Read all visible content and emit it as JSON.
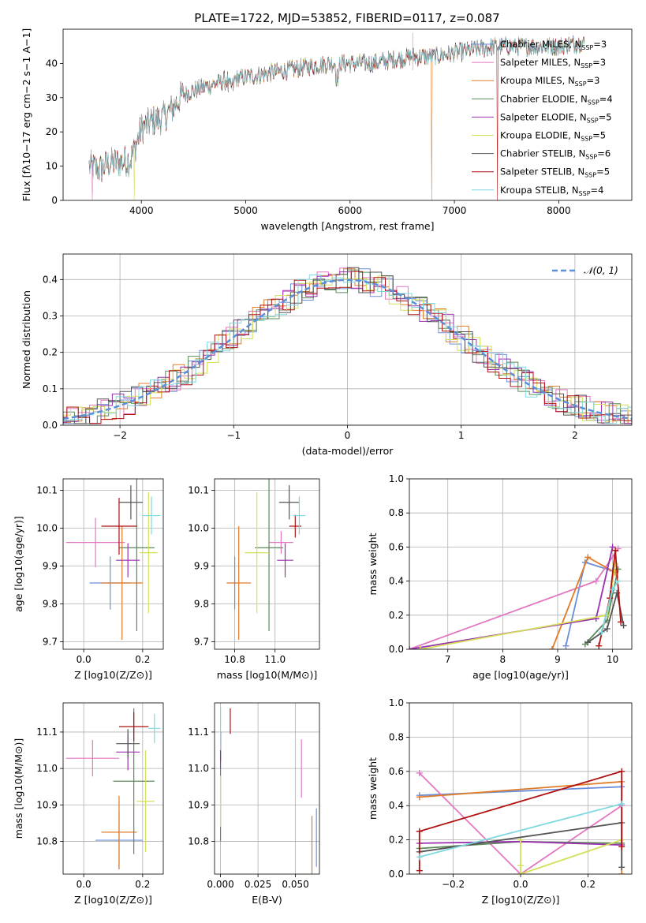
{
  "title": "PLATE=1722, MJD=53852, FIBERID=0117, z=0.087",
  "colors": {
    "Chabrier MILES": "#6a8fd8",
    "Salpeter MILES": "#e377c2",
    "Kroupa MILES": "#e07b28",
    "Chabrier ELODIE": "#5c8a5a",
    "Salpeter ELODIE": "#9b30b0",
    "Kroupa ELODIE": "#d4e05a",
    "Chabrier STELIB": "#555555",
    "Salpeter STELIB": "#b01010",
    "Kroupa STELIB": "#7fd8e0"
  },
  "labels": {
    "spec_ylabel": "Flux [f$_\\lambda$10$^{-17}$ erg cm$^{-2}$ s$^{-1}$ A$^{-1}$]",
    "spec_xlabel": "wavelength [Angstrom, rest frame]",
    "hist_ylabel": "Normed distribution",
    "hist_xlabel": "(data-model)/error",
    "hist_legend": "𝒩(0, 1)",
    "age_label": "age  [log10(age/yr)]",
    "Z_label": "Z [log10(Z/Z⊙)]",
    "mass_label": "mass [log10(M/M⊙)]",
    "ebv_label": "E(B-V)",
    "mw_label": "mass weight"
  },
  "chart_data": [
    {
      "type": "line",
      "name": "spectrum",
      "xlabel": "wavelength [Angstrom, rest frame]",
      "ylabel": "Flux [fλ10−17 erg cm−2 s−1 A−1]",
      "xlim": [
        3250,
        8700
      ],
      "ylim": [
        0,
        50
      ],
      "xticks": [
        4000,
        5000,
        6000,
        7000,
        8000
      ],
      "yticks": [
        0,
        10,
        20,
        30,
        40
      ],
      "legend_position": "top-right",
      "legend": [
        {
          "name": "Chabrier MILES",
          "nssp": "3"
        },
        {
          "name": "Salpeter MILES",
          "nssp": "3"
        },
        {
          "name": "Kroupa MILES",
          "nssp": "3"
        },
        {
          "name": "Chabrier ELODIE",
          "nssp": "4"
        },
        {
          "name": "Salpeter ELODIE",
          "nssp": "5"
        },
        {
          "name": "Kroupa ELODIE",
          "nssp": "5"
        },
        {
          "name": "Chabrier STELIB",
          "nssp": "6"
        },
        {
          "name": "Salpeter STELIB",
          "nssp": "5"
        },
        {
          "name": "Kroupa STELIB",
          "nssp": "4"
        }
      ],
      "continuum": [
        [
          3500,
          10
        ],
        [
          3600,
          9
        ],
        [
          3700,
          11
        ],
        [
          3800,
          11
        ],
        [
          3900,
          12
        ],
        [
          4000,
          21
        ],
        [
          4100,
          23
        ],
        [
          4200,
          24
        ],
        [
          4300,
          27
        ],
        [
          4400,
          31
        ],
        [
          4600,
          33
        ],
        [
          4800,
          35
        ],
        [
          5000,
          36
        ],
        [
          5200,
          37
        ],
        [
          5400,
          38
        ],
        [
          5600,
          39
        ],
        [
          5800,
          40
        ],
        [
          6000,
          40
        ],
        [
          6200,
          40
        ],
        [
          6400,
          41
        ],
        [
          6600,
          42
        ],
        [
          6800,
          42
        ],
        [
          7000,
          43
        ],
        [
          7200,
          44
        ],
        [
          7400,
          45
        ],
        [
          7600,
          45
        ],
        [
          7800,
          45
        ],
        [
          8000,
          45
        ],
        [
          8200,
          46
        ]
      ],
      "glitches": [
        {
          "x": 3530,
          "name": "Salpeter MILES"
        },
        {
          "x": 3930,
          "name": "Kroupa ELODIE"
        },
        {
          "x": 6780,
          "name": "Kroupa MILES"
        },
        {
          "x": 7410,
          "name": "Salpeter STELIB"
        }
      ]
    },
    {
      "type": "histogram",
      "name": "residuals",
      "xlabel": "(data-model)/error",
      "ylabel": "Normed distribution",
      "xlim": [
        -2.5,
        2.5
      ],
      "ylim": [
        0,
        0.47
      ],
      "xticks": [
        -2,
        -1,
        0,
        1,
        2
      ],
      "yticks": [
        0.0,
        0.1,
        0.2,
        0.3,
        0.4
      ],
      "grid": true,
      "reference": {
        "name": "𝒩(0, 1)",
        "mu": 0,
        "sigma": 1
      },
      "bin_width": 0.1
    },
    {
      "type": "scatter",
      "name": "age-vs-Z",
      "xlabel": "Z [log10(Z/Z⊙)]",
      "ylabel": "age  [log10(age/yr)]",
      "xlim": [
        -0.07,
        0.27
      ],
      "ylim": [
        9.68,
        10.13
      ],
      "xticks": [
        0.0,
        0.2
      ],
      "yticks": [
        9.7,
        9.8,
        9.9,
        10.0,
        10.1
      ],
      "points": [
        {
          "name": "Chabrier MILES",
          "x": 0.09,
          "y": 9.855,
          "xerr": 0.07,
          "yerr": 0.07
        },
        {
          "name": "Salpeter MILES",
          "x": 0.04,
          "y": 9.962,
          "xerr": 0.1,
          "yerr": 0.065
        },
        {
          "name": "Kroupa MILES",
          "x": 0.13,
          "y": 9.855,
          "xerr": 0.07,
          "yerr": 0.15
        },
        {
          "name": "Chabrier ELODIE",
          "x": 0.18,
          "y": 9.948,
          "xerr": 0.06,
          "yerr": 0.22
        },
        {
          "name": "Salpeter ELODIE",
          "x": 0.15,
          "y": 9.915,
          "xerr": 0.04,
          "yerr": 0.045
        },
        {
          "name": "Kroupa ELODIE",
          "x": 0.22,
          "y": 9.935,
          "xerr": 0.03,
          "yerr": 0.16
        },
        {
          "name": "Chabrier STELIB",
          "x": 0.16,
          "y": 10.068,
          "xerr": 0.04,
          "yerr": 0.045
        },
        {
          "name": "Salpeter STELIB",
          "x": 0.12,
          "y": 10.005,
          "xerr": 0.06,
          "yerr": 0.075
        },
        {
          "name": "Kroupa STELIB",
          "x": 0.23,
          "y": 10.033,
          "xerr": 0.03,
          "yerr": 0.05
        }
      ]
    },
    {
      "type": "scatter",
      "name": "age-vs-mass",
      "xlabel": "mass [log10(M/M⊙)]",
      "ylabel": "",
      "xlim": [
        10.7,
        11.22
      ],
      "ylim": [
        9.68,
        10.13
      ],
      "xticks": [
        10.8,
        11.0
      ],
      "yticks": [
        9.7,
        9.8,
        9.9,
        10.0,
        10.1
      ],
      "points": [
        {
          "name": "Chabrier MILES",
          "x": 10.8,
          "y": 9.855,
          "xerr": 0.01,
          "yerr": 0.07
        },
        {
          "name": "Salpeter MILES",
          "x": 11.03,
          "y": 9.962,
          "xerr": 0.06,
          "yerr": 0.03
        },
        {
          "name": "Kroupa MILES",
          "x": 10.82,
          "y": 9.855,
          "xerr": 0.06,
          "yerr": 0.15
        },
        {
          "name": "Chabrier ELODIE",
          "x": 10.97,
          "y": 9.948,
          "xerr": 0.07,
          "yerr": 0.22
        },
        {
          "name": "Salpeter ELODIE",
          "x": 11.05,
          "y": 9.915,
          "xerr": 0.04,
          "yerr": 0.045
        },
        {
          "name": "Kroupa ELODIE",
          "x": 10.91,
          "y": 9.935,
          "xerr": 0.06,
          "yerr": 0.16
        },
        {
          "name": "Chabrier STELIB",
          "x": 11.07,
          "y": 10.068,
          "xerr": 0.05,
          "yerr": 0.045
        },
        {
          "name": "Salpeter STELIB",
          "x": 11.1,
          "y": 10.005,
          "xerr": 0.03,
          "yerr": 0.03
        },
        {
          "name": "Kroupa STELIB",
          "x": 11.12,
          "y": 10.033,
          "xerr": 0.03,
          "yerr": 0.05
        }
      ]
    },
    {
      "type": "line",
      "name": "mass-weight-vs-age",
      "xlabel": "age  [log10(age/yr)]",
      "ylabel": "mass weight",
      "xlim": [
        6.3,
        10.35
      ],
      "ylim": [
        0,
        1
      ],
      "xticks": [
        7,
        8,
        9,
        10
      ],
      "yticks": [
        0.0,
        0.2,
        0.4,
        0.6,
        0.8,
        1.0
      ],
      "grid": true,
      "series": [
        {
          "name": "Chabrier MILES",
          "points": [
            [
              9.15,
              0.02
            ],
            [
              9.5,
              0.51
            ],
            [
              10.0,
              0.46
            ]
          ]
        },
        {
          "name": "Salpeter MILES",
          "points": [
            [
              6.3,
              0.0
            ],
            [
              9.7,
              0.4
            ],
            [
              10.1,
              0.59
            ]
          ]
        },
        {
          "name": "Kroupa MILES",
          "points": [
            [
              8.9,
              0.0
            ],
            [
              9.55,
              0.54
            ],
            [
              10.05,
              0.45
            ]
          ]
        },
        {
          "name": "Chabrier ELODIE",
          "points": [
            [
              9.5,
              0.03
            ],
            [
              9.9,
              0.17
            ],
            [
              10.1,
              0.47
            ]
          ]
        },
        {
          "name": "Salpeter ELODIE",
          "points": [
            [
              6.3,
              0.0
            ],
            [
              9.7,
              0.18
            ],
            [
              10.0,
              0.6
            ]
          ]
        },
        {
          "name": "Kroupa ELODIE",
          "points": [
            [
              6.5,
              0.0
            ],
            [
              9.9,
              0.2
            ],
            [
              10.05,
              0.5
            ]
          ]
        },
        {
          "name": "Chabrier STELIB",
          "points": [
            [
              9.55,
              0.04
            ],
            [
              9.9,
              0.12
            ],
            [
              10.08,
              0.33
            ],
            [
              10.2,
              0.14
            ]
          ]
        },
        {
          "name": "Salpeter STELIB",
          "points": [
            [
              9.75,
              0.02
            ],
            [
              9.95,
              0.3
            ],
            [
              10.05,
              0.58
            ],
            [
              10.15,
              0.16
            ]
          ]
        },
        {
          "name": "Kroupa STELIB",
          "points": [
            [
              9.8,
              0.1
            ],
            [
              10.0,
              0.35
            ],
            [
              10.1,
              0.4
            ]
          ]
        }
      ]
    },
    {
      "type": "scatter",
      "name": "mass-vs-Z",
      "xlabel": "Z [log10(Z/Z⊙)]",
      "ylabel": "mass [log10(M/M⊙)]",
      "xlim": [
        -0.07,
        0.27
      ],
      "ylim": [
        10.71,
        11.18
      ],
      "xticks": [
        0.0,
        0.2
      ],
      "yticks": [
        10.8,
        10.9,
        11.0,
        11.1
      ],
      "points": [
        {
          "name": "Chabrier MILES",
          "x": 0.12,
          "y": 10.803,
          "xerr": 0.08,
          "yerr": 0.08
        },
        {
          "name": "Salpeter MILES",
          "x": 0.03,
          "y": 11.028,
          "xerr": 0.09,
          "yerr": 0.05
        },
        {
          "name": "Kroupa MILES",
          "x": 0.12,
          "y": 10.825,
          "xerr": 0.06,
          "yerr": 0.1
        },
        {
          "name": "Chabrier ELODIE",
          "x": 0.17,
          "y": 10.965,
          "xerr": 0.07,
          "yerr": 0.2
        },
        {
          "name": "Salpeter ELODIE",
          "x": 0.15,
          "y": 11.045,
          "xerr": 0.04,
          "yerr": 0.05
        },
        {
          "name": "Kroupa ELODIE",
          "x": 0.21,
          "y": 10.91,
          "xerr": 0.03,
          "yerr": 0.14
        },
        {
          "name": "Chabrier STELIB",
          "x": 0.15,
          "y": 11.068,
          "xerr": 0.04,
          "yerr": 0.04
        },
        {
          "name": "Salpeter STELIB",
          "x": 0.17,
          "y": 11.115,
          "xerr": 0.05,
          "yerr": 0.04
        },
        {
          "name": "Kroupa STELIB",
          "x": 0.24,
          "y": 11.11,
          "xerr": 0.02,
          "yerr": 0.04
        }
      ]
    },
    {
      "type": "scatter",
      "name": "mass-vs-ebv",
      "xlabel": "E(B-V)",
      "ylabel": "",
      "xlim": [
        -0.004,
        0.066
      ],
      "ylim": [
        10.71,
        11.18
      ],
      "xticks": [
        0.0,
        0.025,
        0.05
      ],
      "yticks": [
        10.8,
        10.9,
        11.0,
        11.1
      ],
      "points": [
        {
          "name": "Chabrier MILES",
          "x": 0.064,
          "y": 10.81,
          "yerr": 0.08
        },
        {
          "name": "Salpeter MILES",
          "x": 0.054,
          "y": 11.0,
          "yerr": 0.08
        },
        {
          "name": "Kroupa MILES",
          "x": 0.061,
          "y": 10.79,
          "yerr": 0.08
        },
        {
          "name": "Chabrier ELODIE",
          "x": 0.0,
          "y": 10.9,
          "yerr": 0.1
        },
        {
          "name": "Salpeter ELODIE",
          "x": 0.0,
          "y": 11.05,
          "yerr": 0.05
        },
        {
          "name": "Kroupa ELODIE",
          "x": 0.0,
          "y": 10.91,
          "yerr": 0.07
        },
        {
          "name": "Chabrier STELIB",
          "x": 0.0,
          "y": 11.06,
          "yerr": 0.04
        },
        {
          "name": "Salpeter STELIB",
          "x": 0.0065,
          "y": 11.13,
          "yerr": 0.035
        },
        {
          "name": "Kroupa STELIB",
          "x": 0.0,
          "y": 11.11,
          "yerr": 0.06
        }
      ]
    },
    {
      "type": "line",
      "name": "mass-weight-vs-Z",
      "xlabel": "Z [log10(Z/Z⊙)]",
      "ylabel": "mass weight",
      "xlim": [
        -0.33,
        0.33
      ],
      "ylim": [
        0,
        1
      ],
      "xticks": [
        -0.2,
        0.0,
        0.2
      ],
      "yticks": [
        0.0,
        0.2,
        0.4,
        0.6,
        0.8,
        1.0
      ],
      "grid": true,
      "series": [
        {
          "name": "Chabrier MILES",
          "points": [
            [
              -0.3,
              0.46
            ],
            [
              0.3,
              0.51
            ]
          ]
        },
        {
          "name": "Salpeter MILES",
          "points": [
            [
              -0.3,
              0.59
            ],
            [
              0.0,
              0.0
            ],
            [
              0.3,
              0.4
            ]
          ]
        },
        {
          "name": "Kroupa MILES",
          "points": [
            [
              -0.3,
              0.45
            ],
            [
              0.3,
              0.54
            ],
            [
              0.3,
              0.0
            ]
          ]
        },
        {
          "name": "Chabrier ELODIE",
          "points": [
            [
              -0.3,
              0.15
            ],
            [
              0.0,
              0.19
            ],
            [
              0.3,
              0.18
            ]
          ]
        },
        {
          "name": "Salpeter ELODIE",
          "points": [
            [
              -0.3,
              0.18
            ],
            [
              0.0,
              0.19
            ],
            [
              0.3,
              0.17
            ]
          ]
        },
        {
          "name": "Kroupa ELODIE",
          "points": [
            [
              0.0,
              0.2
            ],
            [
              0.0,
              0.05
            ],
            [
              0.0,
              0.0
            ],
            [
              0.3,
              0.2
            ]
          ]
        },
        {
          "name": "Chabrier STELIB",
          "points": [
            [
              -0.3,
              0.13
            ],
            [
              0.3,
              0.3
            ],
            [
              0.3,
              0.04
            ]
          ]
        },
        {
          "name": "Salpeter STELIB",
          "points": [
            [
              -0.3,
              0.02
            ],
            [
              -0.3,
              0.25
            ],
            [
              0.3,
              0.6
            ],
            [
              0.3,
              0.16
            ]
          ]
        },
        {
          "name": "Kroupa STELIB",
          "points": [
            [
              -0.3,
              0.1
            ],
            [
              0.3,
              0.41
            ]
          ]
        }
      ]
    }
  ]
}
